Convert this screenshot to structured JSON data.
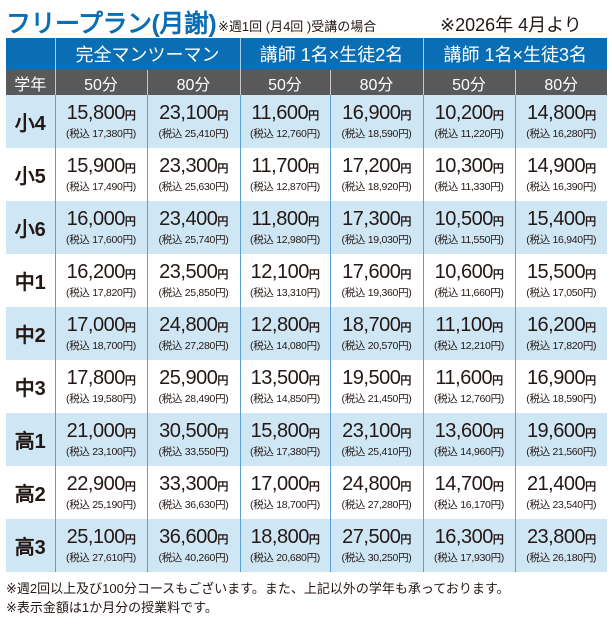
{
  "title": "フリープラン(月謝)",
  "condition": "※週1回 (月4回 )受講の場合",
  "start": "※2026年 4月より",
  "header": {
    "blank": "",
    "plans": [
      "完全マンツーマン",
      "講師 1名×生徒2名",
      "講師 1名×生徒3名"
    ],
    "grade_label": "学年",
    "durations": [
      "50分",
      "80分",
      "50分",
      "80分",
      "50分",
      "80分"
    ]
  },
  "yen": "円",
  "tax_prefix": "(税込 ",
  "tax_suffix": "円)",
  "rows": [
    {
      "grade": "小4",
      "prices": [
        "15,800",
        "23,100",
        "11,600",
        "16,900",
        "10,200",
        "14,800"
      ],
      "tax": [
        "17,380",
        "25,410",
        "12,760",
        "18,590",
        "11,220",
        "16,280"
      ]
    },
    {
      "grade": "小5",
      "prices": [
        "15,900",
        "23,300",
        "11,700",
        "17,200",
        "10,300",
        "14,900"
      ],
      "tax": [
        "17,490",
        "25,630",
        "12,870",
        "18,920",
        "11,330",
        "16,390"
      ]
    },
    {
      "grade": "小6",
      "prices": [
        "16,000",
        "23,400",
        "11,800",
        "17,300",
        "10,500",
        "15,400"
      ],
      "tax": [
        "17,600",
        "25,740",
        "12,980",
        "19,030",
        "11,550",
        "16,940"
      ]
    },
    {
      "grade": "中1",
      "prices": [
        "16,200",
        "23,500",
        "12,100",
        "17,600",
        "10,600",
        "15,500"
      ],
      "tax": [
        "17,820",
        "25,850",
        "13,310",
        "19,360",
        "11,660",
        "17,050"
      ]
    },
    {
      "grade": "中2",
      "prices": [
        "17,000",
        "24,800",
        "12,800",
        "18,700",
        "11,100",
        "16,200"
      ],
      "tax": [
        "18,700",
        "27,280",
        "14,080",
        "20,570",
        "12,210",
        "17,820"
      ]
    },
    {
      "grade": "中3",
      "prices": [
        "17,800",
        "25,900",
        "13,500",
        "19,500",
        "11,600",
        "16,900"
      ],
      "tax": [
        "19,580",
        "28,490",
        "14,850",
        "21,450",
        "12,760",
        "18,590"
      ]
    },
    {
      "grade": "高1",
      "prices": [
        "21,000",
        "30,500",
        "15,800",
        "23,100",
        "13,600",
        "19,600"
      ],
      "tax": [
        "23,100",
        "33,550",
        "17,380",
        "25,410",
        "14,960",
        "21,560"
      ]
    },
    {
      "grade": "高2",
      "prices": [
        "22,900",
        "33,300",
        "17,000",
        "24,800",
        "14,700",
        "21,400"
      ],
      "tax": [
        "25,190",
        "36,630",
        "18,700",
        "27,280",
        "16,170",
        "23,540"
      ]
    },
    {
      "grade": "高3",
      "prices": [
        "25,100",
        "36,600",
        "18,800",
        "27,500",
        "16,300",
        "23,800"
      ],
      "tax": [
        "27,610",
        "40,260",
        "20,680",
        "30,250",
        "17,930",
        "26,180"
      ]
    }
  ],
  "notes": [
    "※週2回以上及び100分コースもございます。また、上記以外の学年も承っております。",
    "※表示金額は1か月分の授業料です。"
  ],
  "colors": {
    "header_blue": "#0a6eb4",
    "subheader_gray": "#595959",
    "row_alt": "#cfe6f4"
  }
}
